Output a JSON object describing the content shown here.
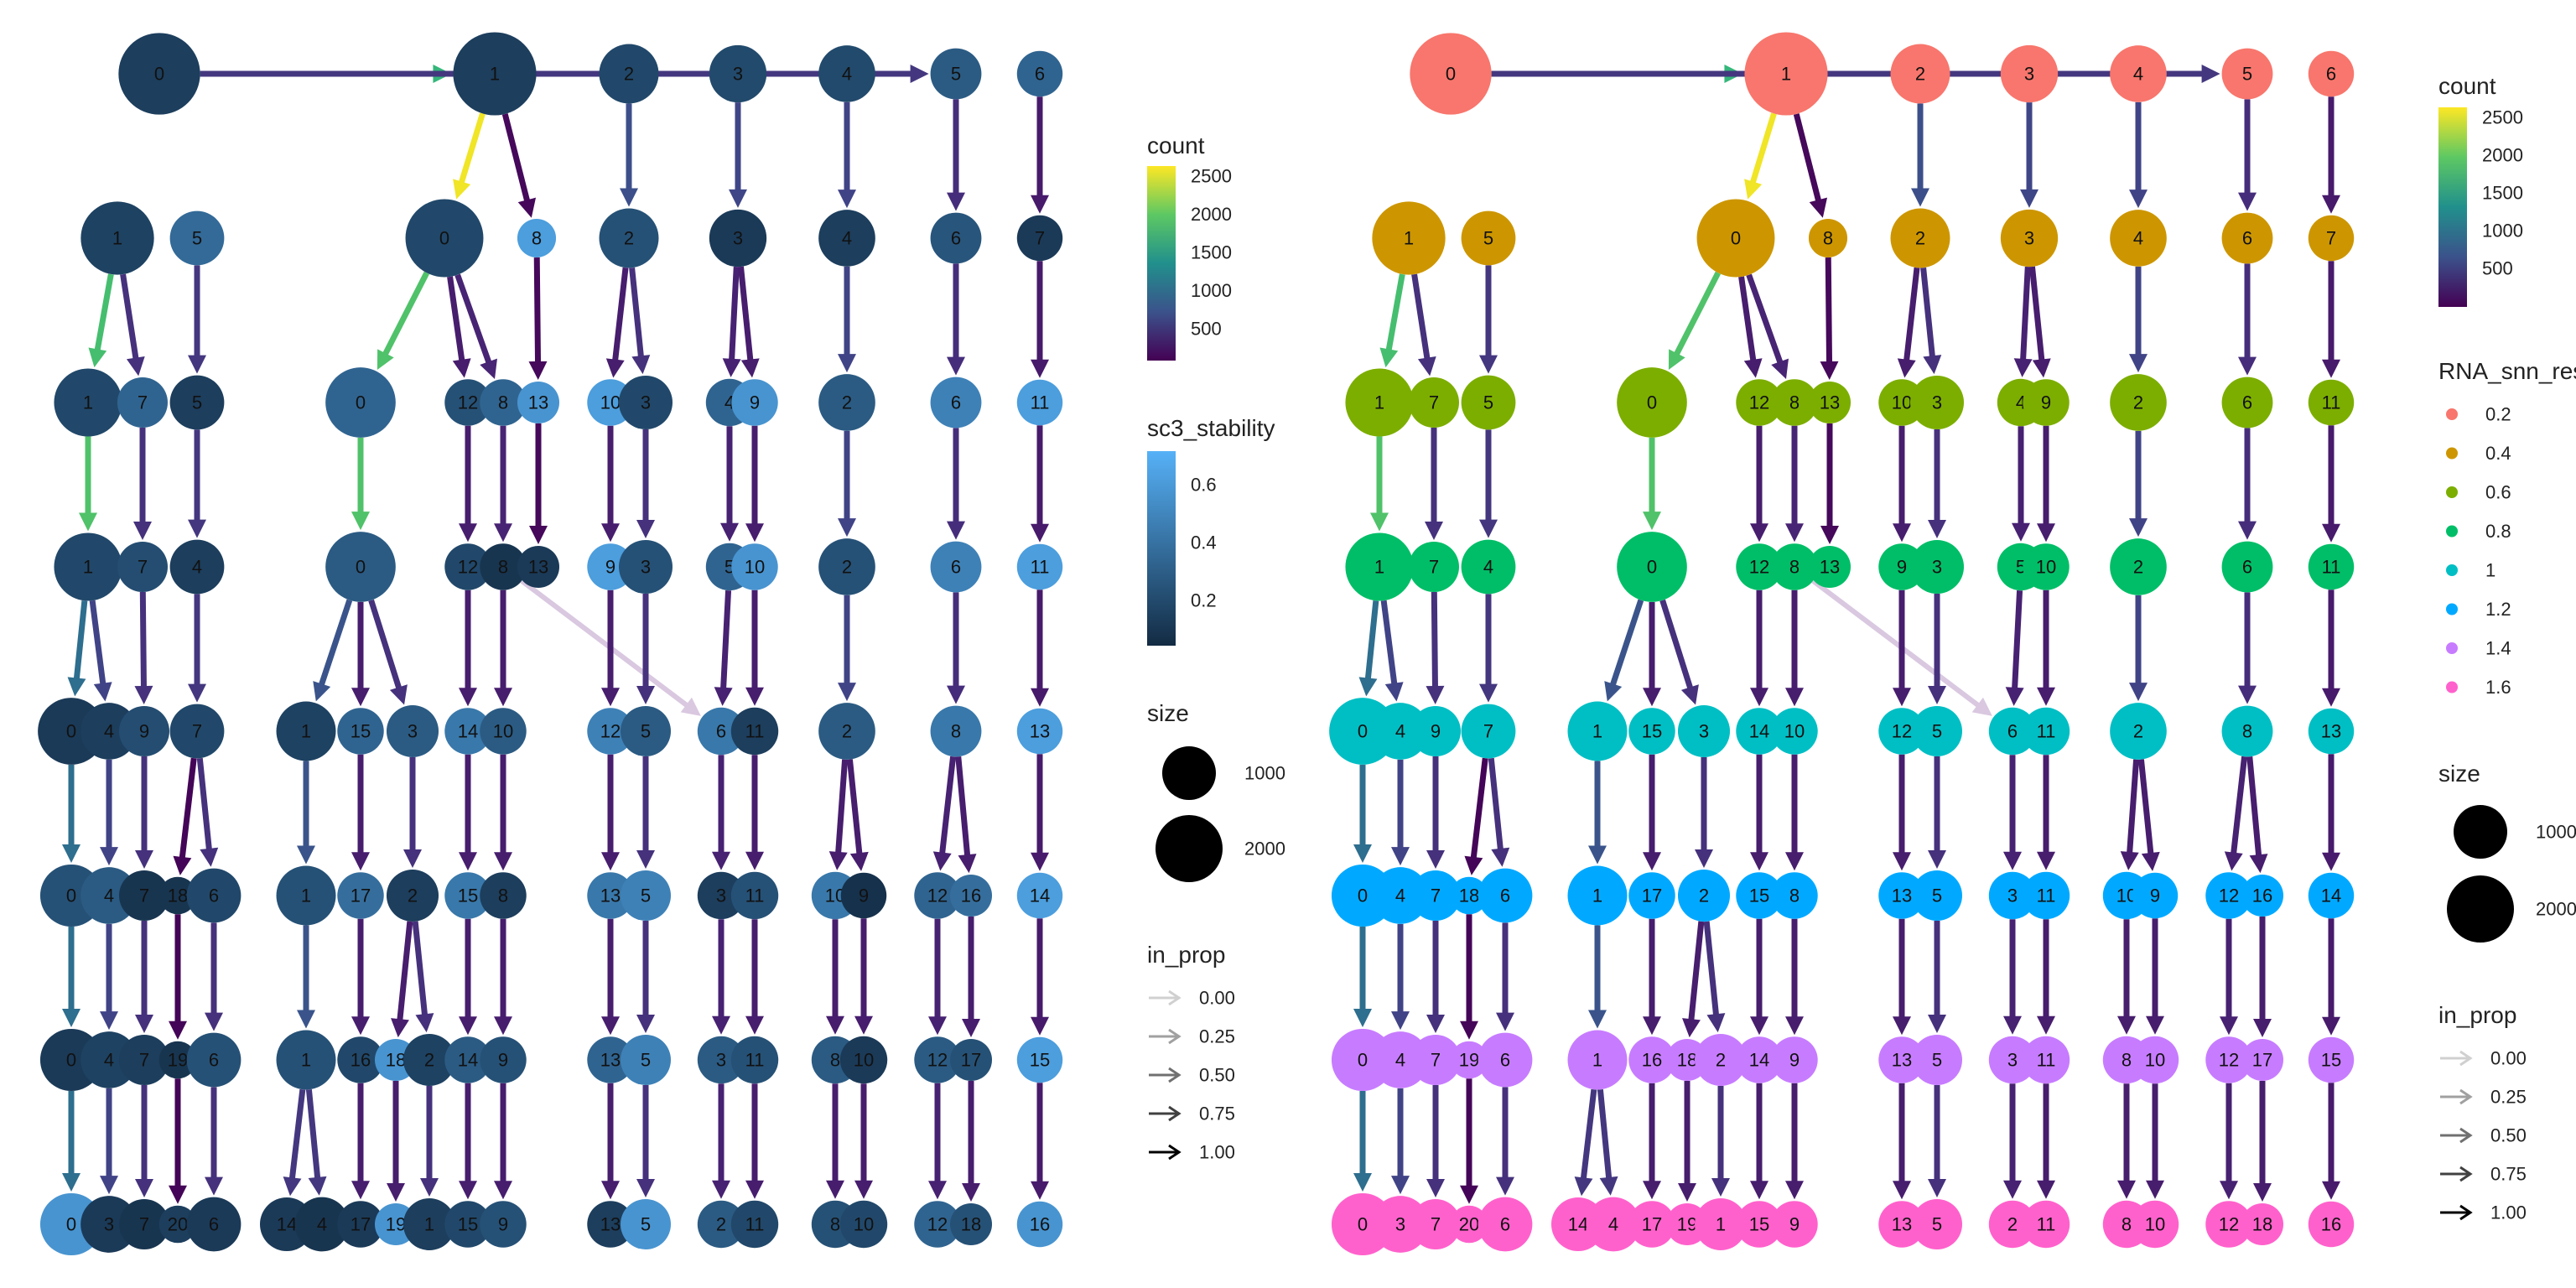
{
  "rows": [
    0,
    1,
    2,
    3,
    4,
    5,
    6,
    7,
    8
  ],
  "nodes": [
    {
      "r": 0,
      "label": "0",
      "count": 1760,
      "stab": 0.1
    },
    {
      "r": 0,
      "label": "1",
      "count": 1850,
      "stab": 0.1
    },
    {
      "r": 0,
      "label": "2",
      "count": 700,
      "stab": 0.15
    },
    {
      "r": 0,
      "label": "3",
      "count": 620,
      "stab": 0.16
    },
    {
      "r": 0,
      "label": "4",
      "count": 600,
      "stab": 0.16
    },
    {
      "r": 0,
      "label": "5",
      "count": 420,
      "stab": 0.25
    },
    {
      "r": 0,
      "label": "6",
      "count": 280,
      "stab": 0.3
    },
    {
      "r": 1,
      "label": "1",
      "count": 1300,
      "stab": 0.12
    },
    {
      "r": 1,
      "label": "5",
      "count": 520,
      "stab": 0.33
    },
    {
      "r": 1,
      "label": "0",
      "count": 1550,
      "stab": 0.15
    },
    {
      "r": 1,
      "label": "8",
      "count": 140,
      "stab": 0.6
    },
    {
      "r": 1,
      "label": "2",
      "count": 700,
      "stab": 0.2
    },
    {
      "r": 1,
      "label": "3",
      "count": 620,
      "stab": 0.08
    },
    {
      "r": 1,
      "label": "4",
      "count": 600,
      "stab": 0.1
    },
    {
      "r": 1,
      "label": "6",
      "count": 420,
      "stab": 0.22
    },
    {
      "r": 1,
      "label": "7",
      "count": 280,
      "stab": 0.08
    },
    {
      "r": 2,
      "label": "1",
      "count": 1050,
      "stab": 0.15
    },
    {
      "r": 2,
      "label": "7",
      "count": 400,
      "stab": 0.3
    },
    {
      "r": 2,
      "label": "5",
      "count": 520,
      "stab": 0.1
    },
    {
      "r": 2,
      "label": "0",
      "count": 1150,
      "stab": 0.3
    },
    {
      "r": 2,
      "label": "12",
      "count": 300,
      "stab": 0.2
    },
    {
      "r": 2,
      "label": "8",
      "count": 300,
      "stab": 0.3
    },
    {
      "r": 2,
      "label": "13",
      "count": 200,
      "stab": 0.55
    },
    {
      "r": 2,
      "label": "10",
      "count": 300,
      "stab": 0.6
    },
    {
      "r": 2,
      "label": "3",
      "count": 500,
      "stab": 0.15
    },
    {
      "r": 2,
      "label": "4",
      "count": 320,
      "stab": 0.3
    },
    {
      "r": 2,
      "label": "9",
      "count": 300,
      "stab": 0.55
    },
    {
      "r": 2,
      "label": "2",
      "count": 600,
      "stab": 0.25
    },
    {
      "r": 2,
      "label": "6",
      "count": 420,
      "stab": 0.45
    },
    {
      "r": 2,
      "label": "11",
      "count": 280,
      "stab": 0.6
    },
    {
      "r": 3,
      "label": "1",
      "count": 1050,
      "stab": 0.15
    },
    {
      "r": 3,
      "label": "7",
      "count": 400,
      "stab": 0.18
    },
    {
      "r": 3,
      "label": "4",
      "count": 520,
      "stab": 0.1
    },
    {
      "r": 3,
      "label": "0",
      "count": 1150,
      "stab": 0.25
    },
    {
      "r": 3,
      "label": "12",
      "count": 300,
      "stab": 0.15
    },
    {
      "r": 3,
      "label": "8",
      "count": 300,
      "stab": 0.05
    },
    {
      "r": 3,
      "label": "13",
      "count": 200,
      "stab": 0.08
    },
    {
      "r": 3,
      "label": "9",
      "count": 300,
      "stab": 0.6
    },
    {
      "r": 3,
      "label": "3",
      "count": 500,
      "stab": 0.2
    },
    {
      "r": 3,
      "label": "5",
      "count": 320,
      "stab": 0.3
    },
    {
      "r": 3,
      "label": "10",
      "count": 300,
      "stab": 0.55
    },
    {
      "r": 3,
      "label": "2",
      "count": 600,
      "stab": 0.2
    },
    {
      "r": 3,
      "label": "6",
      "count": 420,
      "stab": 0.45
    },
    {
      "r": 3,
      "label": "11",
      "count": 280,
      "stab": 0.6
    },
    {
      "r": 4,
      "label": "0",
      "count": 1000,
      "stab": 0.08
    },
    {
      "r": 4,
      "label": "4",
      "count": 600,
      "stab": 0.1
    },
    {
      "r": 4,
      "label": "9",
      "count": 400,
      "stab": 0.18
    },
    {
      "r": 4,
      "label": "7",
      "count": 520,
      "stab": 0.15
    },
    {
      "r": 4,
      "label": "1",
      "count": 700,
      "stab": 0.12
    },
    {
      "r": 4,
      "label": "15",
      "count": 300,
      "stab": 0.3
    },
    {
      "r": 4,
      "label": "3",
      "count": 450,
      "stab": 0.25
    },
    {
      "r": 4,
      "label": "14",
      "count": 300,
      "stab": 0.4
    },
    {
      "r": 4,
      "label": "10",
      "count": 300,
      "stab": 0.25
    },
    {
      "r": 4,
      "label": "12",
      "count": 300,
      "stab": 0.45
    },
    {
      "r": 4,
      "label": "5",
      "count": 400,
      "stab": 0.25
    },
    {
      "r": 4,
      "label": "6",
      "count": 320,
      "stab": 0.4
    },
    {
      "r": 4,
      "label": "11",
      "count": 320,
      "stab": 0.1
    },
    {
      "r": 4,
      "label": "2",
      "count": 600,
      "stab": 0.25
    },
    {
      "r": 4,
      "label": "8",
      "count": 420,
      "stab": 0.4
    },
    {
      "r": 4,
      "label": "13",
      "count": 280,
      "stab": 0.6
    },
    {
      "r": 5,
      "label": "0",
      "count": 800,
      "stab": 0.2
    },
    {
      "r": 5,
      "label": "4",
      "count": 600,
      "stab": 0.25
    },
    {
      "r": 5,
      "label": "7",
      "count": 400,
      "stab": 0.05
    },
    {
      "r": 5,
      "label": "18",
      "count": 120,
      "stab": 0.05
    },
    {
      "r": 5,
      "label": "6",
      "count": 520,
      "stab": 0.15
    },
    {
      "r": 5,
      "label": "1",
      "count": 700,
      "stab": 0.2
    },
    {
      "r": 5,
      "label": "17",
      "count": 300,
      "stab": 0.35
    },
    {
      "r": 5,
      "label": "2",
      "count": 450,
      "stab": 0.1
    },
    {
      "r": 5,
      "label": "15",
      "count": 300,
      "stab": 0.4
    },
    {
      "r": 5,
      "label": "8",
      "count": 300,
      "stab": 0.1
    },
    {
      "r": 5,
      "label": "13",
      "count": 300,
      "stab": 0.4
    },
    {
      "r": 5,
      "label": "5",
      "count": 400,
      "stab": 0.45
    },
    {
      "r": 5,
      "label": "3",
      "count": 320,
      "stab": 0.1
    },
    {
      "r": 5,
      "label": "11",
      "count": 320,
      "stab": 0.2
    },
    {
      "r": 5,
      "label": "10",
      "count": 320,
      "stab": 0.4
    },
    {
      "r": 5,
      "label": "9",
      "count": 280,
      "stab": 0.03
    },
    {
      "r": 5,
      "label": "12",
      "count": 300,
      "stab": 0.3
    },
    {
      "r": 5,
      "label": "16",
      "count": 200,
      "stab": 0.35
    },
    {
      "r": 5,
      "label": "14",
      "count": 280,
      "stab": 0.6
    },
    {
      "r": 6,
      "label": "0",
      "count": 800,
      "stab": 0.08
    },
    {
      "r": 6,
      "label": "4",
      "count": 600,
      "stab": 0.12
    },
    {
      "r": 6,
      "label": "7",
      "count": 400,
      "stab": 0.1
    },
    {
      "r": 6,
      "label": "19",
      "count": 120,
      "stab": 0.05
    },
    {
      "r": 6,
      "label": "6",
      "count": 520,
      "stab": 0.2
    },
    {
      "r": 6,
      "label": "1",
      "count": 700,
      "stab": 0.2
    },
    {
      "r": 6,
      "label": "16",
      "count": 300,
      "stab": 0.15
    },
    {
      "r": 6,
      "label": "18",
      "count": 200,
      "stab": 0.55
    },
    {
      "r": 6,
      "label": "2",
      "count": 450,
      "stab": 0.12
    },
    {
      "r": 6,
      "label": "14",
      "count": 300,
      "stab": 0.25
    },
    {
      "r": 6,
      "label": "9",
      "count": 300,
      "stab": 0.2
    },
    {
      "r": 6,
      "label": "13",
      "count": 300,
      "stab": 0.3
    },
    {
      "r": 6,
      "label": "5",
      "count": 400,
      "stab": 0.45
    },
    {
      "r": 6,
      "label": "3",
      "count": 320,
      "stab": 0.25
    },
    {
      "r": 6,
      "label": "11",
      "count": 320,
      "stab": 0.2
    },
    {
      "r": 6,
      "label": "8",
      "count": 320,
      "stab": 0.25
    },
    {
      "r": 6,
      "label": "10",
      "count": 320,
      "stab": 0.08
    },
    {
      "r": 6,
      "label": "12",
      "count": 300,
      "stab": 0.25
    },
    {
      "r": 6,
      "label": "17",
      "count": 200,
      "stab": 0.2
    },
    {
      "r": 6,
      "label": "15",
      "count": 280,
      "stab": 0.6
    },
    {
      "r": 7,
      "label": "0",
      "count": 800,
      "stab": 0.55
    },
    {
      "r": 7,
      "label": "3",
      "count": 600,
      "stab": 0.08
    },
    {
      "r": 7,
      "label": "7",
      "count": 400,
      "stab": 0.05
    },
    {
      "r": 7,
      "label": "20",
      "count": 120,
      "stab": 0.1
    },
    {
      "r": 7,
      "label": "6",
      "count": 520,
      "stab": 0.08
    },
    {
      "r": 7,
      "label": "14",
      "count": 500,
      "stab": 0.08
    },
    {
      "r": 7,
      "label": "4",
      "count": 520,
      "stab": 0.05
    },
    {
      "r": 7,
      "label": "17",
      "count": 300,
      "stab": 0.08
    },
    {
      "r": 7,
      "label": "19",
      "count": 200,
      "stab": 0.55
    },
    {
      "r": 7,
      "label": "1",
      "count": 450,
      "stab": 0.1
    },
    {
      "r": 7,
      "label": "15",
      "count": 300,
      "stab": 0.15
    },
    {
      "r": 7,
      "label": "9",
      "count": 300,
      "stab": 0.2
    },
    {
      "r": 7,
      "label": "13",
      "count": 300,
      "stab": 0.1
    },
    {
      "r": 7,
      "label": "5",
      "count": 400,
      "stab": 0.55
    },
    {
      "r": 7,
      "label": "2",
      "count": 320,
      "stab": 0.25
    },
    {
      "r": 7,
      "label": "11",
      "count": 320,
      "stab": 0.15
    },
    {
      "r": 7,
      "label": "8",
      "count": 320,
      "stab": 0.2
    },
    {
      "r": 7,
      "label": "10",
      "count": 320,
      "stab": 0.15
    },
    {
      "r": 7,
      "label": "12",
      "count": 300,
      "stab": 0.3
    },
    {
      "r": 7,
      "label": "18",
      "count": 200,
      "stab": 0.2
    },
    {
      "r": 7,
      "label": "16",
      "count": 280,
      "stab": 0.55
    }
  ],
  "edges": [
    [
      0,
      0,
      0,
      1,
      1750
    ],
    [
      0,
      0,
      0,
      5,
      500
    ],
    [
      0,
      1,
      1,
      0,
      2550
    ],
    [
      0,
      1,
      1,
      8,
      150
    ],
    [
      0,
      2,
      1,
      2,
      700
    ],
    [
      0,
      3,
      1,
      3,
      620
    ],
    [
      0,
      4,
      1,
      4,
      600
    ],
    [
      0,
      5,
      1,
      6,
      420
    ],
    [
      0,
      6,
      1,
      7,
      280
    ],
    [
      1,
      1,
      2,
      1,
      1850
    ],
    [
      1,
      1,
      2,
      7,
      450
    ],
    [
      1,
      5,
      2,
      5,
      500
    ],
    [
      1,
      0,
      2,
      0,
      1900
    ],
    [
      1,
      0,
      2,
      12,
      300
    ],
    [
      1,
      0,
      2,
      8,
      350
    ],
    [
      1,
      8,
      2,
      13,
      150
    ],
    [
      1,
      2,
      2,
      10,
      300
    ],
    [
      1,
      2,
      2,
      3,
      450
    ],
    [
      1,
      3,
      2,
      4,
      330
    ],
    [
      1,
      3,
      2,
      9,
      300
    ],
    [
      1,
      4,
      2,
      2,
      600
    ],
    [
      1,
      6,
      2,
      6,
      420
    ],
    [
      1,
      7,
      2,
      11,
      280
    ],
    [
      2,
      1,
      3,
      1,
      1900
    ],
    [
      2,
      7,
      3,
      7,
      450
    ],
    [
      2,
      5,
      3,
      4,
      500
    ],
    [
      2,
      0,
      3,
      0,
      1900
    ],
    [
      2,
      12,
      3,
      12,
      300
    ],
    [
      2,
      8,
      3,
      8,
      350
    ],
    [
      2,
      13,
      3,
      13,
      150
    ],
    [
      2,
      10,
      3,
      9,
      300
    ],
    [
      2,
      3,
      3,
      3,
      450
    ],
    [
      2,
      4,
      3,
      5,
      330
    ],
    [
      2,
      9,
      3,
      10,
      300
    ],
    [
      2,
      2,
      3,
      2,
      600
    ],
    [
      2,
      6,
      3,
      6,
      420
    ],
    [
      2,
      11,
      3,
      11,
      280
    ],
    [
      3,
      1,
      4,
      0,
      1000
    ],
    [
      3,
      1,
      4,
      4,
      600
    ],
    [
      3,
      7,
      4,
      9,
      450
    ],
    [
      3,
      4,
      4,
      7,
      500
    ],
    [
      3,
      0,
      4,
      1,
      750
    ],
    [
      3,
      0,
      4,
      15,
      300
    ],
    [
      3,
      0,
      4,
      3,
      450
    ],
    [
      3,
      12,
      4,
      14,
      300
    ],
    [
      3,
      8,
      4,
      10,
      300
    ],
    [
      3,
      8,
      4,
      6,
      60
    ],
    [
      3,
      9,
      4,
      12,
      300
    ],
    [
      3,
      3,
      4,
      5,
      450
    ],
    [
      3,
      5,
      4,
      6,
      330
    ],
    [
      3,
      10,
      4,
      11,
      300
    ],
    [
      3,
      2,
      4,
      2,
      600
    ],
    [
      3,
      6,
      4,
      8,
      420
    ],
    [
      3,
      11,
      4,
      13,
      280
    ],
    [
      4,
      0,
      5,
      0,
      1000
    ],
    [
      4,
      4,
      5,
      4,
      600
    ],
    [
      4,
      9,
      5,
      7,
      450
    ],
    [
      4,
      7,
      5,
      18,
      120
    ],
    [
      4,
      7,
      5,
      6,
      450
    ],
    [
      4,
      1,
      5,
      1,
      750
    ],
    [
      4,
      15,
      5,
      17,
      300
    ],
    [
      4,
      3,
      5,
      2,
      450
    ],
    [
      4,
      14,
      5,
      15,
      300
    ],
    [
      4,
      10,
      5,
      8,
      300
    ],
    [
      4,
      12,
      5,
      13,
      300
    ],
    [
      4,
      5,
      5,
      5,
      450
    ],
    [
      4,
      6,
      5,
      3,
      330
    ],
    [
      4,
      11,
      5,
      11,
      300
    ],
    [
      4,
      2,
      5,
      10,
      300
    ],
    [
      4,
      2,
      5,
      9,
      300
    ],
    [
      4,
      8,
      5,
      12,
      330
    ],
    [
      4,
      8,
      5,
      16,
      300
    ],
    [
      4,
      13,
      5,
      14,
      280
    ],
    [
      5,
      0,
      6,
      0,
      1000
    ],
    [
      5,
      4,
      6,
      4,
      600
    ],
    [
      5,
      7,
      6,
      7,
      450
    ],
    [
      5,
      18,
      6,
      19,
      120
    ],
    [
      5,
      6,
      6,
      6,
      450
    ],
    [
      5,
      1,
      6,
      1,
      750
    ],
    [
      5,
      17,
      6,
      16,
      300
    ],
    [
      5,
      2,
      6,
      18,
      300
    ],
    [
      5,
      2,
      6,
      2,
      450
    ],
    [
      5,
      15,
      6,
      14,
      300
    ],
    [
      5,
      8,
      6,
      9,
      300
    ],
    [
      5,
      13,
      6,
      13,
      300
    ],
    [
      5,
      5,
      6,
      5,
      450
    ],
    [
      5,
      3,
      6,
      3,
      330
    ],
    [
      5,
      11,
      6,
      11,
      300
    ],
    [
      5,
      10,
      6,
      8,
      300
    ],
    [
      5,
      9,
      6,
      10,
      300
    ],
    [
      5,
      12,
      6,
      12,
      330
    ],
    [
      5,
      16,
      6,
      17,
      300
    ],
    [
      5,
      14,
      6,
      15,
      280
    ],
    [
      6,
      0,
      7,
      0,
      1000
    ],
    [
      6,
      4,
      7,
      3,
      600
    ],
    [
      6,
      7,
      7,
      7,
      450
    ],
    [
      6,
      19,
      7,
      20,
      120
    ],
    [
      6,
      6,
      7,
      6,
      450
    ],
    [
      6,
      1,
      7,
      14,
      500
    ],
    [
      6,
      1,
      7,
      4,
      500
    ],
    [
      6,
      16,
      7,
      17,
      300
    ],
    [
      6,
      18,
      7,
      19,
      300
    ],
    [
      6,
      2,
      7,
      1,
      450
    ],
    [
      6,
      14,
      7,
      15,
      300
    ],
    [
      6,
      9,
      7,
      9,
      300
    ],
    [
      6,
      13,
      7,
      13,
      300
    ],
    [
      6,
      5,
      7,
      5,
      450
    ],
    [
      6,
      3,
      7,
      2,
      330
    ],
    [
      6,
      11,
      7,
      11,
      300
    ],
    [
      6,
      8,
      7,
      8,
      300
    ],
    [
      6,
      10,
      7,
      10,
      300
    ],
    [
      6,
      12,
      7,
      12,
      330
    ],
    [
      6,
      17,
      7,
      18,
      300
    ],
    [
      6,
      15,
      7,
      16,
      280
    ]
  ],
  "resolution_colors": [
    "#F8766D",
    "#CD9600",
    "#7CAE00",
    "#00BE67",
    "#00BFC4",
    "#00A9FF",
    "#C77CFF",
    "#FF61CC"
  ],
  "left_legend": {
    "count_title": "count",
    "count_ticks": [
      "2500",
      "2000",
      "1500",
      "1000",
      "500"
    ],
    "stab_title": "sc3_stability",
    "stab_ticks": [
      "0.6",
      "0.4",
      "0.2"
    ],
    "size_title": "size",
    "size_ticks": [
      "1000",
      "2000"
    ],
    "prop_title": "in_prop",
    "prop_ticks": [
      "0.00",
      "0.25",
      "0.50",
      "0.75",
      "1.00"
    ]
  },
  "right_legend": {
    "count_title": "count",
    "count_ticks": [
      "2500",
      "2000",
      "1500",
      "1000",
      "500"
    ],
    "res_title": "RNA_snn_res.",
    "res_ticks": [
      "0.2",
      "0.4",
      "0.6",
      "0.8",
      "1",
      "1.2",
      "1.4",
      "1.6"
    ],
    "size_title": "size",
    "size_ticks": [
      "1000",
      "2000"
    ],
    "prop_title": "in_prop",
    "prop_ticks": [
      "0.00",
      "0.25",
      "0.50",
      "0.75",
      "1.00"
    ]
  }
}
